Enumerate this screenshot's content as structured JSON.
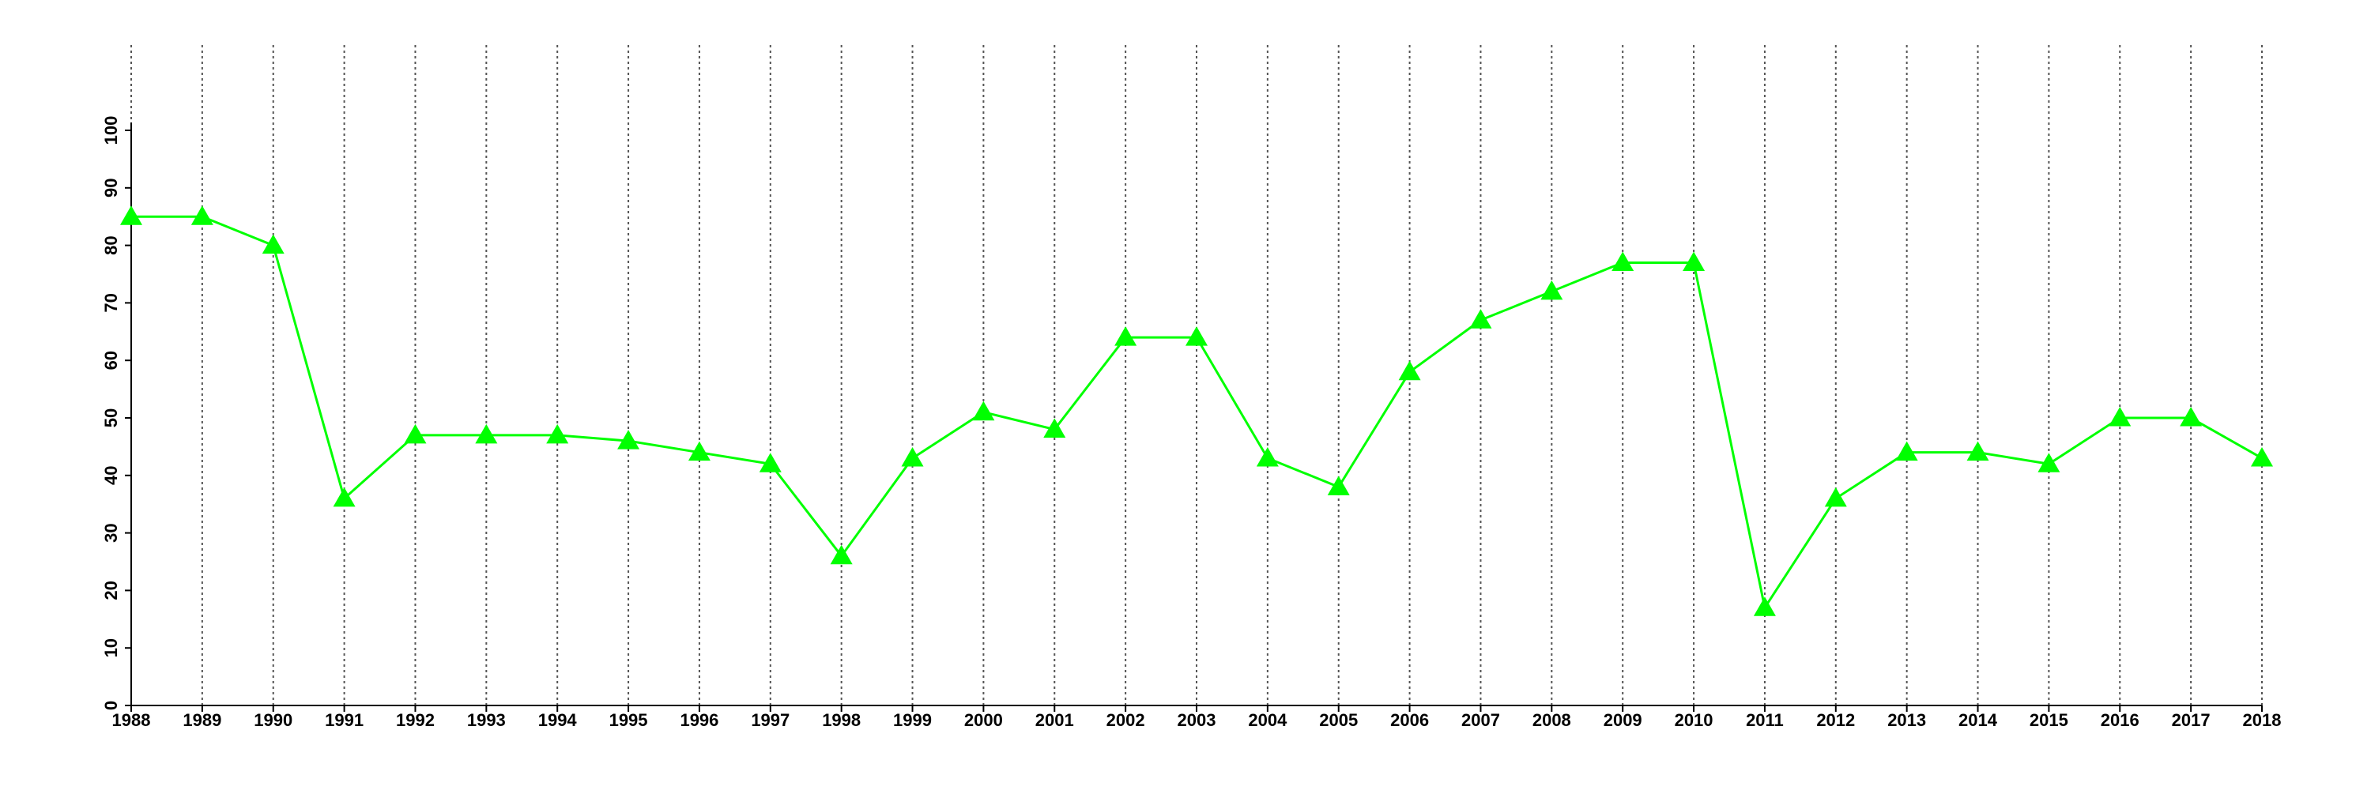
{
  "chart_data": {
    "type": "line",
    "x": [
      1988,
      1989,
      1990,
      1991,
      1992,
      1993,
      1994,
      1995,
      1996,
      1997,
      1998,
      1999,
      2000,
      2001,
      2002,
      2003,
      2004,
      2005,
      2006,
      2007,
      2008,
      2009,
      2010,
      2011,
      2012,
      2013,
      2014,
      2015,
      2016,
      2017,
      2018
    ],
    "values": [
      85,
      85,
      80,
      36,
      47,
      47,
      47,
      46,
      44,
      42,
      26,
      43,
      51,
      48,
      64,
      64,
      43,
      38,
      58,
      67,
      72,
      77,
      77,
      17,
      36,
      44,
      44,
      42,
      50,
      50,
      43
    ],
    "color": "#00ff00",
    "marker": "triangle",
    "xlim": [
      1988,
      2018
    ],
    "xticks": [
      1988,
      1989,
      1990,
      1991,
      1992,
      1993,
      1994,
      1995,
      1996,
      1997,
      1998,
      1999,
      2000,
      2001,
      2002,
      2003,
      2004,
      2005,
      2006,
      2007,
      2008,
      2009,
      2010,
      2011,
      2012,
      2013,
      2014,
      2015,
      2016,
      2017,
      2018
    ],
    "ylim": [
      0,
      100
    ],
    "yticks": [
      0,
      10,
      20,
      30,
      40,
      50,
      60,
      70,
      80,
      90,
      100
    ],
    "grid": "x"
  }
}
